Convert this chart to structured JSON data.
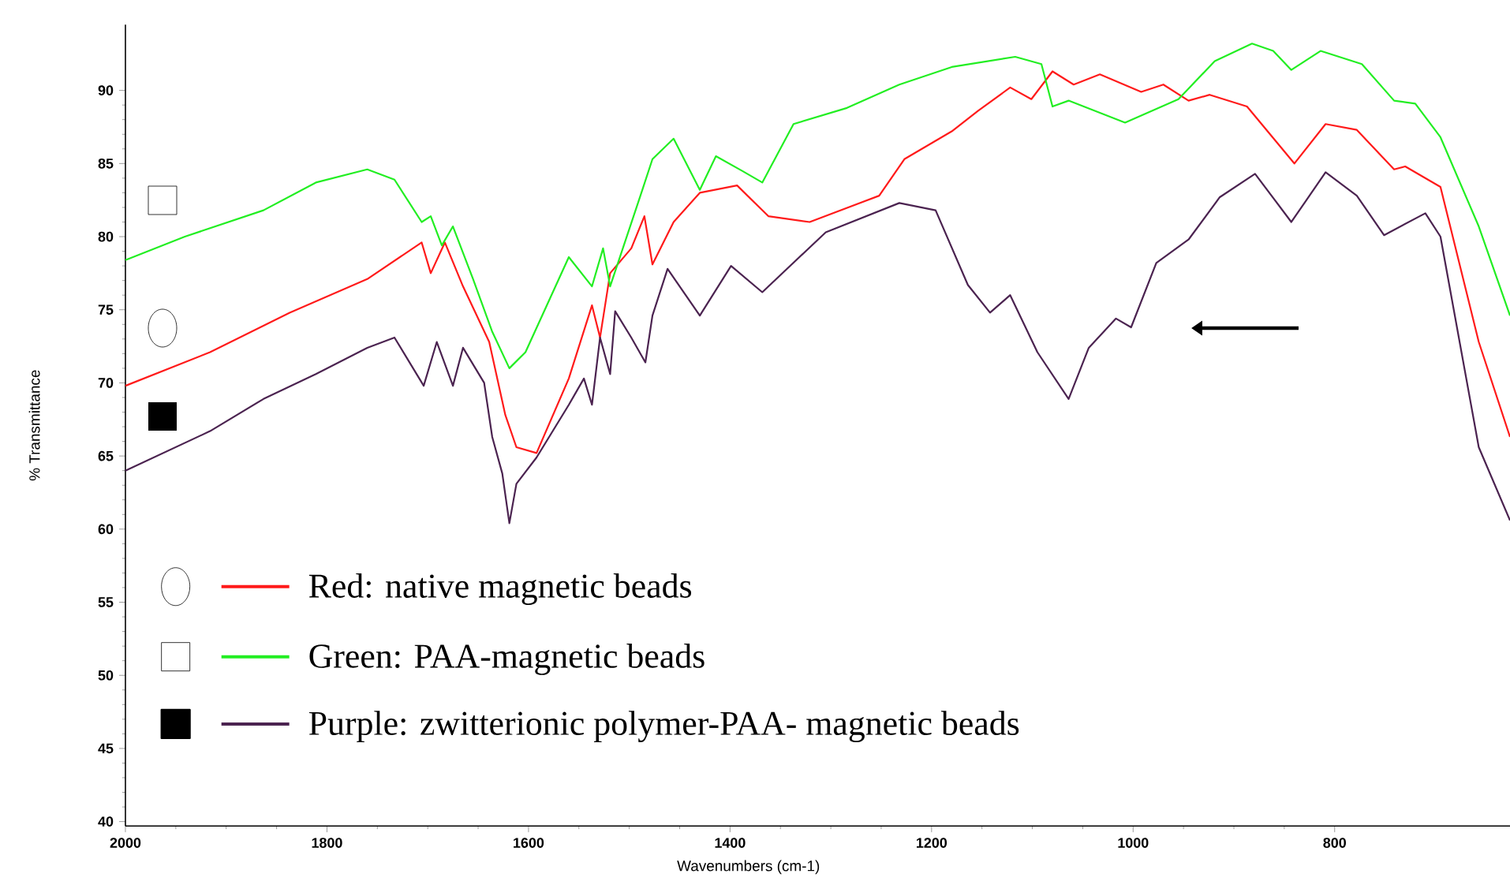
{
  "chart_data": {
    "type": "line",
    "xlabel": "Wavenumbers (cm-1)",
    "ylabel": "% Transmittance",
    "xlim": [
      2000,
      626
    ],
    "ylim": [
      39.7,
      94.5
    ],
    "xticks": [
      800,
      1000,
      1200,
      1400,
      1600,
      1800,
      2000
    ],
    "yticks": [
      40,
      45,
      50,
      55,
      60,
      65,
      70,
      75,
      80,
      85,
      90
    ],
    "grid": false,
    "legend": "bottom left",
    "series": [
      {
        "name": "Red: native magnetic beads",
        "color": "#ff1a1a",
        "x": [
          2000,
          1916,
          1837,
          1760,
          1706,
          1697,
          1683,
          1665,
          1639,
          1623,
          1612,
          1592,
          1560,
          1537,
          1529,
          1519,
          1498,
          1485,
          1477,
          1456,
          1430,
          1393,
          1362,
          1321,
          1252,
          1227,
          1180,
          1154,
          1122,
          1101,
          1080,
          1059,
          1033,
          992,
          970,
          945,
          924,
          887,
          840,
          809,
          778,
          741,
          730,
          695,
          657,
          626
        ],
        "values": [
          69.8,
          72.1,
          74.8,
          77.1,
          79.6,
          77.5,
          79.6,
          76.6,
          72.8,
          67.8,
          65.6,
          65.2,
          70.3,
          75.3,
          73.1,
          77.5,
          79.2,
          81.4,
          78.1,
          81.0,
          83.0,
          83.5,
          81.4,
          81.0,
          82.8,
          85.3,
          87.2,
          88.6,
          90.2,
          89.4,
          91.3,
          90.4,
          91.1,
          89.9,
          90.4,
          89.3,
          89.7,
          88.9,
          85.0,
          87.7,
          87.3,
          84.6,
          84.8,
          83.4,
          72.8,
          66.3
        ]
      },
      {
        "name": "Green: PAA-magnetic beads",
        "color": "#22ee22",
        "x": [
          2000,
          1941,
          1863,
          1811,
          1760,
          1733,
          1706,
          1697,
          1686,
          1675,
          1655,
          1636,
          1619,
          1603,
          1560,
          1537,
          1526,
          1519,
          1487,
          1477,
          1456,
          1430,
          1414,
          1388,
          1368,
          1337,
          1284,
          1232,
          1180,
          1117,
          1091,
          1080,
          1064,
          1008,
          955,
          919,
          882,
          861,
          843,
          814,
          773,
          741,
          720,
          695,
          657,
          626
        ],
        "values": [
          78.4,
          80.0,
          81.8,
          83.7,
          84.6,
          83.9,
          81.0,
          81.4,
          79.4,
          80.7,
          77.1,
          73.5,
          71.0,
          72.1,
          78.6,
          76.6,
          79.2,
          76.6,
          83.2,
          85.3,
          86.7,
          83.2,
          85.5,
          84.5,
          83.7,
          87.7,
          88.8,
          90.4,
          91.6,
          92.3,
          91.8,
          88.9,
          89.3,
          87.8,
          89.4,
          92.0,
          93.2,
          92.7,
          91.4,
          92.7,
          91.8,
          89.3,
          89.1,
          86.8,
          80.7,
          74.6
        ]
      },
      {
        "name": "Purple: zwitterionic polymer-PAA- magnetic beads",
        "color": "#4b2350",
        "x": [
          2000,
          1916,
          1863,
          1811,
          1760,
          1733,
          1704,
          1691,
          1675,
          1665,
          1644,
          1636,
          1626,
          1619,
          1612,
          1592,
          1560,
          1545,
          1537,
          1529,
          1519,
          1514,
          1498,
          1484,
          1477,
          1462,
          1430,
          1399,
          1368,
          1305,
          1232,
          1196,
          1164,
          1142,
          1122,
          1095,
          1064,
          1044,
          1017,
          1002,
          977,
          945,
          914,
          879,
          843,
          809,
          778,
          751,
          710,
          695,
          657,
          626
        ],
        "values": [
          64.0,
          66.7,
          68.9,
          70.6,
          72.4,
          73.1,
          69.8,
          72.8,
          69.8,
          72.4,
          70.0,
          66.3,
          63.8,
          60.4,
          63.1,
          64.9,
          68.5,
          70.3,
          68.5,
          73.1,
          70.6,
          74.9,
          73.1,
          71.4,
          74.6,
          77.8,
          74.6,
          78.0,
          76.2,
          80.3,
          82.3,
          81.8,
          76.7,
          74.8,
          76.0,
          72.1,
          68.9,
          72.4,
          74.4,
          73.8,
          78.2,
          79.8,
          82.7,
          84.3,
          81.0,
          84.4,
          82.8,
          80.1,
          81.6,
          80.0,
          65.6,
          60.6
        ]
      }
    ]
  }
}
